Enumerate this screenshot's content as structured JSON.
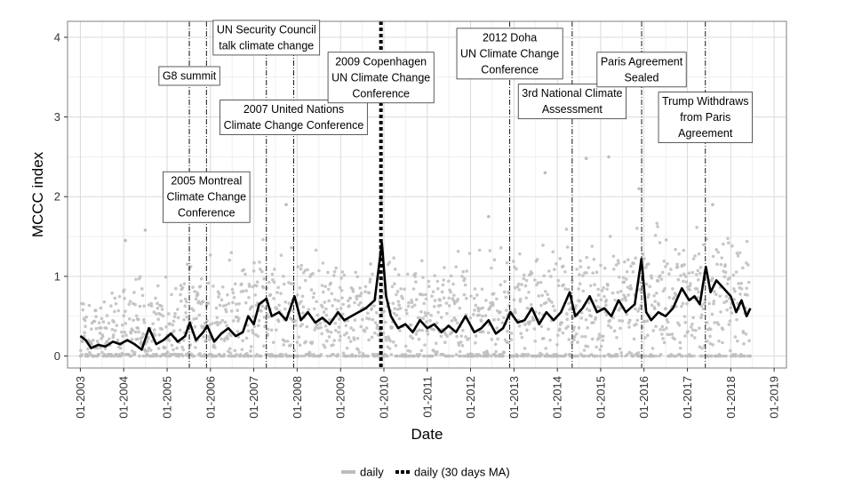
{
  "chart_data": {
    "type": "line",
    "xlabel": "Date",
    "ylabel": "MCCC index",
    "xlim": [
      "2002-09-15",
      "2019-04-15"
    ],
    "ylim": [
      -0.15,
      4.2
    ],
    "y_ticks": [
      "0",
      "1",
      "2",
      "3",
      "4"
    ],
    "x_ticks": [
      {
        "label": "01-2003",
        "date": "2003-01-01"
      },
      {
        "label": "01-2004",
        "date": "2004-01-01"
      },
      {
        "label": "01-2005",
        "date": "2005-01-01"
      },
      {
        "label": "01-2006",
        "date": "2006-01-01"
      },
      {
        "label": "01-2007",
        "date": "2007-01-01"
      },
      {
        "label": "01-2008",
        "date": "2008-01-01"
      },
      {
        "label": "01-2009",
        "date": "2009-01-01"
      },
      {
        "label": "01-2010",
        "date": "2010-01-01"
      },
      {
        "label": "01-2011",
        "date": "2011-01-01"
      },
      {
        "label": "01-2012",
        "date": "2012-01-01"
      },
      {
        "label": "01-2013",
        "date": "2013-01-01"
      },
      {
        "label": "01-2014",
        "date": "2014-01-01"
      },
      {
        "label": "01-2015",
        "date": "2015-01-01"
      },
      {
        "label": "01-2016",
        "date": "2016-01-01"
      },
      {
        "label": "01-2017",
        "date": "2017-01-01"
      },
      {
        "label": "01-2018",
        "date": "2018-01-01"
      },
      {
        "label": "01-2019",
        "date": "2019-01-01"
      }
    ],
    "grid": true,
    "legend_position": "bottom",
    "series": [
      {
        "name": "daily",
        "style": "points",
        "color": "#bdbdbd",
        "description_bands": [
          {
            "date": "2003-01-01",
            "typical": 0.3,
            "spread": 0.35
          },
          {
            "date": "2005-01-01",
            "typical": 0.35,
            "spread": 0.45
          },
          {
            "date": "2007-01-01",
            "typical": 0.55,
            "spread": 0.55
          },
          {
            "date": "2009-01-01",
            "typical": 0.5,
            "spread": 0.55
          },
          {
            "date": "2011-01-01",
            "typical": 0.45,
            "spread": 0.5
          },
          {
            "date": "2013-01-01",
            "typical": 0.55,
            "spread": 0.6
          },
          {
            "date": "2015-01-01",
            "typical": 0.6,
            "spread": 0.6
          },
          {
            "date": "2017-01-01",
            "typical": 0.8,
            "spread": 0.6
          },
          {
            "date": "2018-06-01",
            "typical": 0.75,
            "spread": 0.6
          }
        ],
        "outliers": [
          {
            "date": "2004-07-01",
            "y": 1.58
          },
          {
            "date": "2004-01-15",
            "y": 1.45
          },
          {
            "date": "2007-10-01",
            "y": 1.9
          },
          {
            "date": "2009-12-10",
            "y": 1.95
          },
          {
            "date": "2013-09-20",
            "y": 2.3
          },
          {
            "date": "2014-09-01",
            "y": 2.48
          },
          {
            "date": "2015-03-10",
            "y": 2.5
          },
          {
            "date": "2015-11-20",
            "y": 2.1
          },
          {
            "date": "2017-08-01",
            "y": 1.9
          },
          {
            "date": "2012-06-01",
            "y": 1.75
          }
        ]
      },
      {
        "name": "daily (30 days MA)",
        "style": "line",
        "color": "#000000",
        "points": [
          {
            "x": "2003-01-01",
            "y": 0.25
          },
          {
            "x": "2003-02-15",
            "y": 0.2
          },
          {
            "x": "2003-04-01",
            "y": 0.1
          },
          {
            "x": "2003-06-01",
            "y": 0.14
          },
          {
            "x": "2003-08-01",
            "y": 0.12
          },
          {
            "x": "2003-10-01",
            "y": 0.18
          },
          {
            "x": "2003-12-01",
            "y": 0.15
          },
          {
            "x": "2004-02-01",
            "y": 0.2
          },
          {
            "x": "2004-04-01",
            "y": 0.15
          },
          {
            "x": "2004-06-01",
            "y": 0.08
          },
          {
            "x": "2004-08-01",
            "y": 0.35
          },
          {
            "x": "2004-10-01",
            "y": 0.15
          },
          {
            "x": "2004-12-01",
            "y": 0.2
          },
          {
            "x": "2005-02-01",
            "y": 0.28
          },
          {
            "x": "2005-04-01",
            "y": 0.18
          },
          {
            "x": "2005-06-01",
            "y": 0.25
          },
          {
            "x": "2005-07-10",
            "y": 0.42
          },
          {
            "x": "2005-09-01",
            "y": 0.2
          },
          {
            "x": "2005-11-01",
            "y": 0.3
          },
          {
            "x": "2005-12-05",
            "y": 0.38
          },
          {
            "x": "2006-02-01",
            "y": 0.18
          },
          {
            "x": "2006-04-01",
            "y": 0.28
          },
          {
            "x": "2006-06-01",
            "y": 0.35
          },
          {
            "x": "2006-08-01",
            "y": 0.25
          },
          {
            "x": "2006-10-01",
            "y": 0.3
          },
          {
            "x": "2006-11-15",
            "y": 0.5
          },
          {
            "x": "2007-01-01",
            "y": 0.4
          },
          {
            "x": "2007-02-15",
            "y": 0.65
          },
          {
            "x": "2007-04-17",
            "y": 0.72
          },
          {
            "x": "2007-06-01",
            "y": 0.5
          },
          {
            "x": "2007-08-01",
            "y": 0.55
          },
          {
            "x": "2007-10-01",
            "y": 0.45
          },
          {
            "x": "2007-12-10",
            "y": 0.75
          },
          {
            "x": "2008-02-01",
            "y": 0.45
          },
          {
            "x": "2008-04-01",
            "y": 0.55
          },
          {
            "x": "2008-06-01",
            "y": 0.42
          },
          {
            "x": "2008-08-01",
            "y": 0.48
          },
          {
            "x": "2008-10-01",
            "y": 0.4
          },
          {
            "x": "2008-12-10",
            "y": 0.55
          },
          {
            "x": "2009-02-01",
            "y": 0.45
          },
          {
            "x": "2009-04-01",
            "y": 0.5
          },
          {
            "x": "2009-06-01",
            "y": 0.55
          },
          {
            "x": "2009-08-01",
            "y": 0.6
          },
          {
            "x": "2009-10-15",
            "y": 0.7
          },
          {
            "x": "2009-12-15",
            "y": 1.42
          },
          {
            "x": "2010-01-20",
            "y": 0.75
          },
          {
            "x": "2010-03-01",
            "y": 0.5
          },
          {
            "x": "2010-05-01",
            "y": 0.35
          },
          {
            "x": "2010-07-01",
            "y": 0.4
          },
          {
            "x": "2010-09-01",
            "y": 0.3
          },
          {
            "x": "2010-11-01",
            "y": 0.45
          },
          {
            "x": "2011-01-01",
            "y": 0.35
          },
          {
            "x": "2011-03-01",
            "y": 0.4
          },
          {
            "x": "2011-05-01",
            "y": 0.3
          },
          {
            "x": "2011-07-01",
            "y": 0.38
          },
          {
            "x": "2011-09-01",
            "y": 0.3
          },
          {
            "x": "2011-11-20",
            "y": 0.5
          },
          {
            "x": "2012-02-01",
            "y": 0.3
          },
          {
            "x": "2012-04-01",
            "y": 0.35
          },
          {
            "x": "2012-06-01",
            "y": 0.45
          },
          {
            "x": "2012-08-01",
            "y": 0.28
          },
          {
            "x": "2012-10-01",
            "y": 0.35
          },
          {
            "x": "2012-12-01",
            "y": 0.55
          },
          {
            "x": "2013-02-01",
            "y": 0.42
          },
          {
            "x": "2013-04-01",
            "y": 0.45
          },
          {
            "x": "2013-06-01",
            "y": 0.6
          },
          {
            "x": "2013-08-01",
            "y": 0.4
          },
          {
            "x": "2013-10-01",
            "y": 0.55
          },
          {
            "x": "2013-12-01",
            "y": 0.45
          },
          {
            "x": "2014-02-01",
            "y": 0.55
          },
          {
            "x": "2014-04-15",
            "y": 0.8
          },
          {
            "x": "2014-06-01",
            "y": 0.5
          },
          {
            "x": "2014-08-01",
            "y": 0.6
          },
          {
            "x": "2014-10-01",
            "y": 0.75
          },
          {
            "x": "2014-12-01",
            "y": 0.55
          },
          {
            "x": "2015-02-01",
            "y": 0.6
          },
          {
            "x": "2015-04-01",
            "y": 0.5
          },
          {
            "x": "2015-06-01",
            "y": 0.7
          },
          {
            "x": "2015-08-01",
            "y": 0.55
          },
          {
            "x": "2015-10-15",
            "y": 0.65
          },
          {
            "x": "2015-12-10",
            "y": 1.22
          },
          {
            "x": "2016-01-20",
            "y": 0.55
          },
          {
            "x": "2016-03-01",
            "y": 0.45
          },
          {
            "x": "2016-05-01",
            "y": 0.55
          },
          {
            "x": "2016-07-01",
            "y": 0.5
          },
          {
            "x": "2016-09-01",
            "y": 0.6
          },
          {
            "x": "2016-11-15",
            "y": 0.85
          },
          {
            "x": "2017-01-15",
            "y": 0.7
          },
          {
            "x": "2017-03-01",
            "y": 0.75
          },
          {
            "x": "2017-04-15",
            "y": 0.65
          },
          {
            "x": "2017-06-05",
            "y": 1.12
          },
          {
            "x": "2017-07-15",
            "y": 0.8
          },
          {
            "x": "2017-09-01",
            "y": 0.95
          },
          {
            "x": "2017-11-01",
            "y": 0.85
          },
          {
            "x": "2018-01-01",
            "y": 0.75
          },
          {
            "x": "2018-02-15",
            "y": 0.55
          },
          {
            "x": "2018-04-01",
            "y": 0.7
          },
          {
            "x": "2018-05-15",
            "y": 0.5
          },
          {
            "x": "2018-06-15",
            "y": 0.6
          }
        ]
      }
    ],
    "event_lines": [
      {
        "date": "2005-07-07",
        "style": "dashdot"
      },
      {
        "date": "2005-11-28",
        "style": "dashdot"
      },
      {
        "date": "2007-04-17",
        "style": "dashdot"
      },
      {
        "date": "2007-12-03",
        "style": "dashdot"
      },
      {
        "date": "2009-12-07",
        "style": "heavy-dotted"
      },
      {
        "date": "2012-11-26",
        "style": "dashdot"
      },
      {
        "date": "2014-05-06",
        "style": "dashdot"
      },
      {
        "date": "2015-12-12",
        "style": "dashdot"
      },
      {
        "date": "2017-06-01",
        "style": "dashdot"
      }
    ],
    "annotations": [
      {
        "lines": [
          "G8 summit"
        ],
        "date": "2005-07-07",
        "y": 3.52
      },
      {
        "lines": [
          "2005 Montreal",
          "Climate Change",
          "Conference"
        ],
        "date": "2005-11-28",
        "y": 2.0
      },
      {
        "lines": [
          "UN Security Council",
          "talk climate change"
        ],
        "date": "2007-04-17",
        "y": 4.0
      },
      {
        "lines": [
          "2007 United Nations",
          "Climate Change Conference"
        ],
        "date": "2007-12-03",
        "y": 3.0
      },
      {
        "lines": [
          "2009 Copenhagen",
          "UN Climate Change",
          "Conference"
        ],
        "date": "2009-12-07",
        "y": 3.5
      },
      {
        "lines": [
          "2012 Doha",
          "UN Climate Change",
          "Conference"
        ],
        "date": "2012-11-26",
        "y": 3.8
      },
      {
        "lines": [
          "3rd National Climate",
          "Assessment"
        ],
        "date": "2014-05-06",
        "y": 3.2
      },
      {
        "lines": [
          "Paris Agreement",
          "Sealed"
        ],
        "date": "2015-12-12",
        "y": 3.6
      },
      {
        "lines": [
          "Trump Withdraws",
          "from Paris",
          "Agreement"
        ],
        "date": "2017-06-01",
        "y": 3.0
      }
    ]
  }
}
